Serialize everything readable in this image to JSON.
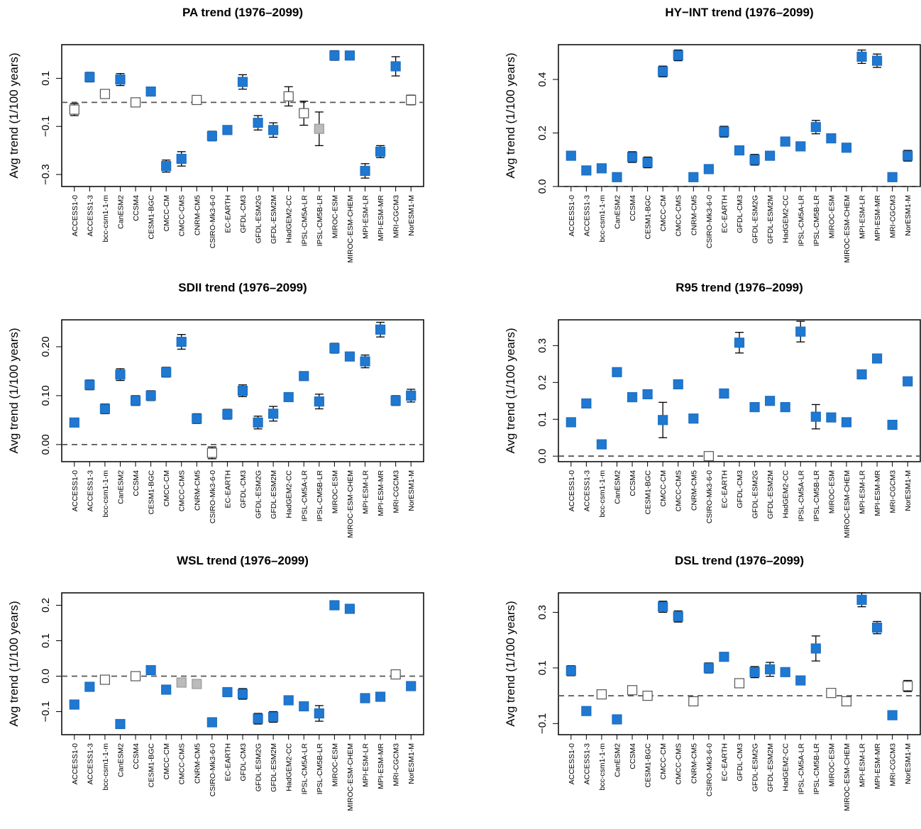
{
  "models": [
    "ACCESS1-0",
    "ACCESS1-3",
    "bcc-csm1-1-m",
    "CanESM2",
    "CCSM4",
    "CESM1-BGC",
    "CMCC-CM",
    "CMCC-CMS",
    "CNRM-CM5",
    "CSIRO-Mk3-6-0",
    "EC-EARTH",
    "GFDL-CM3",
    "GFDL-ESM2G",
    "GFDL-ESM2M",
    "HadGEM2-CC",
    "IPSL-CM5A-LR",
    "IPSL-CM5B-LR",
    "MIROC-ESM",
    "MIROC-ESM-CHEM",
    "MPI-ESM-LR",
    "MPI-ESM-MR",
    "MRI-CGCM3",
    "NorESM1-M"
  ],
  "colors": {
    "significant": "#1f78d1",
    "marginal": "#bbbbbb",
    "insignificant": "#ffffff"
  },
  "chart_data": [
    {
      "type": "scatter",
      "title": "PA trend (1976–2099)",
      "ylabel": "Avg trend (1/100 years)",
      "ylim": [
        -0.35,
        0.24
      ],
      "yticks": [
        0.1,
        -0.1,
        -0.3
      ],
      "ytick_labels": [
        "0.1",
        "−0.1",
        "−0.3"
      ],
      "reference_line": 0,
      "values": [
        -0.03,
        0.105,
        0.035,
        0.095,
        0.0,
        0.045,
        -0.265,
        -0.235,
        0.01,
        -0.14,
        -0.115,
        0.085,
        -0.085,
        -0.115,
        0.025,
        -0.045,
        -0.11,
        0.195,
        0.195,
        -0.285,
        -0.205,
        0.15,
        0.01
      ],
      "errors": [
        0.025,
        0.02,
        0.015,
        0.025,
        0.015,
        0.015,
        0.025,
        0.03,
        0.0,
        0.02,
        0.0,
        0.03,
        0.03,
        0.03,
        0.04,
        0.05,
        0.07,
        0.02,
        0.0,
        0.03,
        0.025,
        0.04,
        0.02
      ],
      "significance": [
        "insignificant",
        "significant",
        "insignificant",
        "significant",
        "insignificant",
        "significant",
        "significant",
        "significant",
        "insignificant",
        "significant",
        "significant",
        "significant",
        "significant",
        "significant",
        "insignificant",
        "insignificant",
        "marginal",
        "significant",
        "significant",
        "significant",
        "significant",
        "significant",
        "insignificant"
      ]
    },
    {
      "type": "scatter",
      "title": "HY−INT trend (1976–2099)",
      "ylabel": "Avg trend (1/100 years)",
      "ylim": [
        0.0,
        0.53
      ],
      "yticks": [
        0.0,
        0.2,
        0.4
      ],
      "ytick_labels": [
        "0.0",
        "0.2",
        "0.4"
      ],
      "reference_line": 0,
      "values": [
        0.115,
        0.06,
        0.068,
        0.035,
        0.11,
        0.09,
        0.43,
        0.49,
        0.035,
        0.065,
        0.205,
        0.135,
        0.1,
        0.115,
        0.168,
        0.15,
        0.222,
        0.18,
        0.145,
        0.485,
        0.47,
        0.035,
        0.115
      ],
      "errors": [
        0.0,
        0.0,
        0.0,
        0.0,
        0.02,
        0.02,
        0.02,
        0.02,
        0.0,
        0.0,
        0.02,
        0.0,
        0.02,
        0.0,
        0.0,
        0.0,
        0.025,
        0.0,
        0.0,
        0.025,
        0.025,
        0.0,
        0.02
      ],
      "significance": [
        "significant",
        "significant",
        "significant",
        "significant",
        "significant",
        "significant",
        "significant",
        "significant",
        "significant",
        "significant",
        "significant",
        "significant",
        "significant",
        "significant",
        "significant",
        "significant",
        "significant",
        "significant",
        "significant",
        "significant",
        "significant",
        "significant",
        "significant"
      ]
    },
    {
      "type": "scatter",
      "title": "SDII trend (1976–2099)",
      "ylabel": "Avg trend (1/100 years)",
      "ylim": [
        -0.035,
        0.255
      ],
      "yticks": [
        0.0,
        0.1,
        0.2
      ],
      "ytick_labels": [
        "0.00",
        "0.10",
        "0.20"
      ],
      "reference_line": 0,
      "values": [
        0.045,
        0.122,
        0.073,
        0.143,
        0.09,
        0.1,
        0.148,
        0.21,
        0.053,
        -0.017,
        0.062,
        0.11,
        0.045,
        0.063,
        0.097,
        0.14,
        0.088,
        0.197,
        0.18,
        0.17,
        0.235,
        0.09,
        0.1
      ],
      "errors": [
        0.0,
        0.01,
        0.01,
        0.012,
        0.01,
        0.01,
        0.01,
        0.015,
        0.01,
        0.012,
        0.01,
        0.012,
        0.013,
        0.015,
        0.0,
        0.0,
        0.015,
        0.01,
        0.0,
        0.013,
        0.015,
        0.01,
        0.013
      ],
      "significance": [
        "significant",
        "significant",
        "significant",
        "significant",
        "significant",
        "significant",
        "significant",
        "significant",
        "significant",
        "insignificant",
        "significant",
        "significant",
        "significant",
        "significant",
        "significant",
        "significant",
        "significant",
        "significant",
        "significant",
        "significant",
        "significant",
        "significant",
        "significant"
      ]
    },
    {
      "type": "scatter",
      "title": "R95 trend (1976–2099)",
      "ylabel": "Avg trend (1/100 years)",
      "ylim": [
        -0.015,
        0.37
      ],
      "yticks": [
        0.0,
        0.1,
        0.2,
        0.3
      ],
      "ytick_labels": [
        "0.0",
        "0.1",
        "0.2",
        "0.3"
      ],
      "reference_line": 0,
      "values": [
        0.092,
        0.143,
        0.032,
        0.228,
        0.16,
        0.168,
        0.098,
        0.195,
        0.102,
        0.0,
        0.17,
        0.308,
        0.133,
        0.15,
        0.133,
        0.338,
        0.107,
        0.105,
        0.092,
        0.222,
        0.265,
        0.085,
        0.203
      ],
      "errors": [
        0.0,
        0.01,
        0.01,
        0.01,
        0.0,
        0.0,
        0.048,
        0.01,
        0.0,
        0.0,
        0.01,
        0.028,
        0.01,
        0.01,
        0.01,
        0.028,
        0.033,
        0.0,
        0.0,
        0.0,
        0.01,
        0.0,
        0.01
      ],
      "significance": [
        "significant",
        "significant",
        "significant",
        "significant",
        "significant",
        "significant",
        "significant",
        "significant",
        "significant",
        "insignificant",
        "significant",
        "significant",
        "significant",
        "significant",
        "significant",
        "significant",
        "significant",
        "significant",
        "significant",
        "significant",
        "significant",
        "significant",
        "significant"
      ]
    },
    {
      "type": "scatter",
      "title": "WSL trend (1976–2099)",
      "ylabel": "Avg trend (1/100 years)",
      "ylim": [
        -0.165,
        0.235
      ],
      "yticks": [
        -0.1,
        0.0,
        0.1,
        0.2
      ],
      "ytick_labels": [
        "−0.1",
        "0.0",
        "0.1",
        "0.2"
      ],
      "reference_line": 0,
      "values": [
        -0.08,
        -0.03,
        -0.01,
        -0.135,
        0.0,
        0.017,
        -0.038,
        -0.018,
        -0.022,
        -0.13,
        -0.045,
        -0.05,
        -0.12,
        -0.115,
        -0.068,
        -0.085,
        -0.105,
        0.2,
        0.19,
        -0.062,
        -0.058,
        0.005,
        -0.028
      ],
      "errors": [
        0.0,
        0.0,
        0.0,
        0.0,
        0.0,
        0.0,
        0.0,
        0.0,
        0.0,
        0.0,
        0.01,
        0.015,
        0.015,
        0.015,
        0.0,
        0.0,
        0.022,
        0.012,
        0.0,
        0.0,
        0.0,
        0.0,
        0.0
      ],
      "significance": [
        "significant",
        "significant",
        "insignificant",
        "significant",
        "insignificant",
        "significant",
        "significant",
        "marginal",
        "marginal",
        "significant",
        "significant",
        "significant",
        "significant",
        "significant",
        "significant",
        "significant",
        "significant",
        "significant",
        "significant",
        "significant",
        "significant",
        "insignificant",
        "significant"
      ]
    },
    {
      "type": "scatter",
      "title": "DSL trend (1976–2099)",
      "ylabel": "Avg trend (1/100 years)",
      "ylim": [
        -0.14,
        0.37
      ],
      "yticks": [
        -0.1,
        0.1,
        0.3
      ],
      "ytick_labels": [
        "−0.1",
        "0.1",
        "0.3"
      ],
      "reference_line": 0,
      "values": [
        0.09,
        -0.055,
        0.005,
        -0.085,
        0.02,
        0.0,
        0.32,
        0.285,
        -0.02,
        0.1,
        0.14,
        0.045,
        0.085,
        0.095,
        0.085,
        0.055,
        0.17,
        0.01,
        -0.02,
        0.345,
        0.245,
        -0.07,
        0.035
      ],
      "errors": [
        0.018,
        0.0,
        0.0,
        0.0,
        0.015,
        0.0,
        0.02,
        0.02,
        0.0,
        0.018,
        0.0,
        0.015,
        0.02,
        0.025,
        0.0,
        0.0,
        0.045,
        0.0,
        0.0,
        0.025,
        0.022,
        0.0,
        0.02
      ],
      "significance": [
        "significant",
        "significant",
        "insignificant",
        "significant",
        "insignificant",
        "insignificant",
        "significant",
        "significant",
        "insignificant",
        "significant",
        "significant",
        "insignificant",
        "significant",
        "significant",
        "significant",
        "significant",
        "significant",
        "insignificant",
        "insignificant",
        "significant",
        "significant",
        "significant",
        "insignificant"
      ]
    }
  ]
}
